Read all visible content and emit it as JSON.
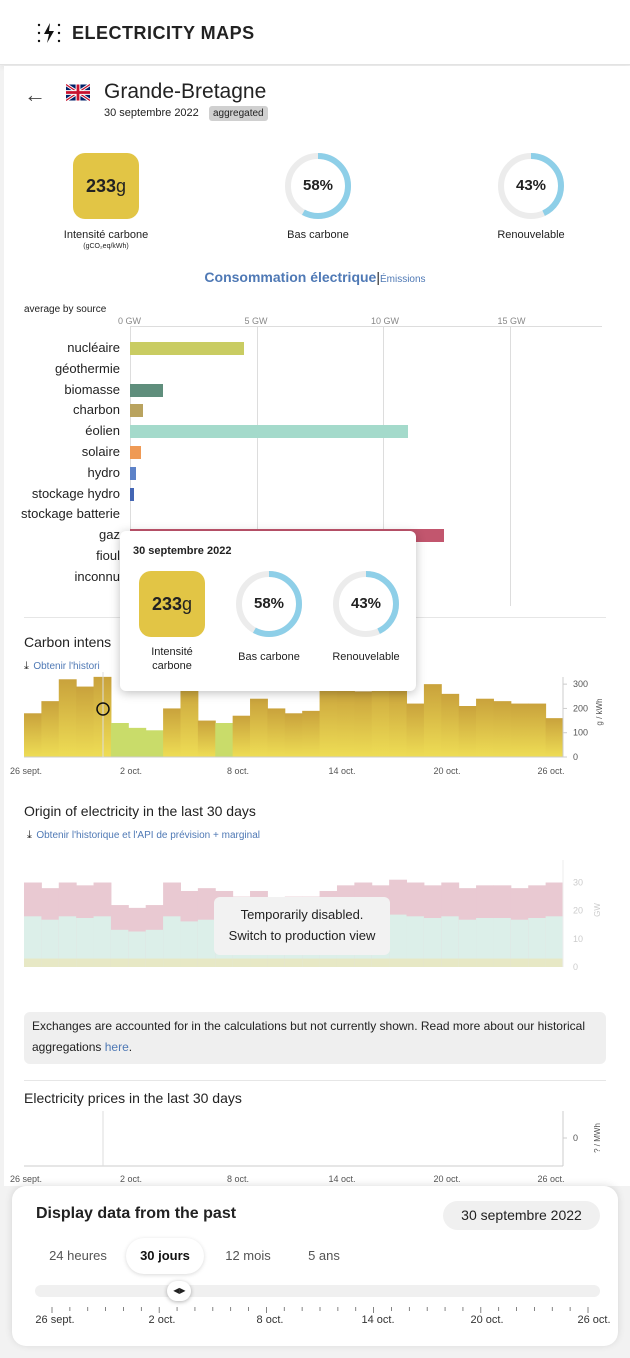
{
  "header": {
    "logo_text": "ELECTRICITY MAPS",
    "logo_icon": "lightning-bolt-icon"
  },
  "zone": {
    "name": "Grande-Bretagne",
    "date": "30 septembre 2022",
    "badge": "aggregated",
    "flag_icon": "uk-flag-icon",
    "back_icon": "arrow-left-icon"
  },
  "metrics": {
    "carbon_value": "233",
    "carbon_unit": "g",
    "carbon_label": "Intensité carbone",
    "carbon_sublabel": "(gCO₂eq/kWh)",
    "low_carbon_value": "58%",
    "low_carbon_fraction": 0.58,
    "low_carbon_label": "Bas carbone",
    "renewable_value": "43%",
    "renewable_fraction": 0.43,
    "renewable_label": "Renouvelable",
    "ring_color": "#8ecfe8",
    "ring_track_color": "#ececec",
    "carbon_color": "#e2c545"
  },
  "toggle": {
    "consumption": "Consommation électrique",
    "separator": "|",
    "emissions": "Émissions"
  },
  "chart_data": [
    {
      "type": "bar",
      "title": "average by source",
      "xlabel": "",
      "x_unit": "GW",
      "xlim": [
        0,
        18
      ],
      "ticks": [
        "0 GW",
        "5 GW",
        "10 GW",
        "15 GW"
      ],
      "categories": [
        "nucléaire",
        "géothermie",
        "biomasse",
        "charbon",
        "éolien",
        "solaire",
        "hydro",
        "stockage hydro",
        "stockage batterie",
        "gaz",
        "fioul",
        "inconnu"
      ],
      "values": [
        4.5,
        0,
        1.3,
        0.5,
        11.0,
        0.45,
        0.25,
        0.15,
        0,
        12.4,
        0,
        0
      ],
      "colors": [
        "#c9cc62",
        "#b5b5b5",
        "#5f8e7c",
        "#b9a35f",
        "#a4dacb",
        "#ef9a55",
        "#5d82c8",
        "#4466b4",
        "#cccccc",
        "#c2566e",
        "#999999",
        "#bbbbbb"
      ]
    },
    {
      "type": "area",
      "title": "Carbon intensity in the last 30 days",
      "y_unit": "g / kWh",
      "ylim": [
        0,
        350
      ],
      "y_ticks": [
        "300",
        "200",
        "100",
        "0"
      ],
      "x_ticks": [
        "26 sept.",
        "2 oct.",
        "8 oct.",
        "14 oct.",
        "20 oct.",
        "26 oct."
      ],
      "values": [
        180,
        230,
        320,
        290,
        330,
        140,
        120,
        110,
        200,
        300,
        150,
        140,
        170,
        240,
        200,
        180,
        190,
        290,
        280,
        270,
        320,
        280,
        220,
        300,
        260,
        210,
        240,
        230,
        220,
        220,
        160
      ]
    },
    {
      "type": "area",
      "title": "Origin of electricity in the last 30 days",
      "y_unit": "GW",
      "ylim": [
        0,
        35
      ],
      "y_ticks": [
        "30",
        "20",
        "10",
        "0"
      ],
      "values_total": [
        30,
        28,
        30,
        29,
        30,
        22,
        21,
        22,
        30,
        27,
        28,
        27,
        25,
        27,
        23,
        25,
        25,
        27,
        29,
        30,
        29,
        31,
        30,
        29,
        30,
        28,
        29,
        29,
        28,
        29,
        30
      ]
    },
    {
      "type": "line",
      "title": "Electricity prices in the last 30 days",
      "y_unit": "? / MWh",
      "y_ticks": [
        "0"
      ],
      "x_ticks": [
        "26 sept.",
        "2 oct.",
        "8 oct.",
        "14 oct.",
        "20 oct.",
        "26 oct."
      ]
    }
  ],
  "tooltip": {
    "date": "30 septembre 2022",
    "carbon_value": "233",
    "carbon_unit": "g",
    "carbon_label_1": "Intensité",
    "carbon_label_2": "carbone",
    "low_carbon": "58%",
    "low_carbon_label": "Bas carbone",
    "renewable": "43%",
    "renewable_label": "Renouvelable"
  },
  "carbon_section": {
    "title_visible": "Carbon intens",
    "link_visible": "Obtenir l'histori"
  },
  "origin_section": {
    "title": "Origin of electricity in the last 30 days",
    "link": "Obtenir l'historique et l'API de prévision + marginal",
    "disabled_line1": "Temporarily disabled.",
    "disabled_line2": "Switch to production view"
  },
  "notice": {
    "text": "Exchanges are accounted for in the calculations but not currently shown. Read more about our historical aggregations ",
    "link": "here",
    "end": "."
  },
  "prices_section": {
    "title": "Electricity prices in the last 30 days"
  },
  "time_controller": {
    "title": "Display data from the past",
    "selected_date": "30 septembre 2022",
    "tabs": [
      "24 heures",
      "30 jours",
      "12 mois",
      "5 ans"
    ],
    "active_tab": "30 jours",
    "slider_ticks": [
      "26 sept.",
      "2 oct.",
      "8 oct.",
      "14 oct.",
      "20 oct.",
      "26 oct."
    ],
    "slider_position": 0.13
  }
}
